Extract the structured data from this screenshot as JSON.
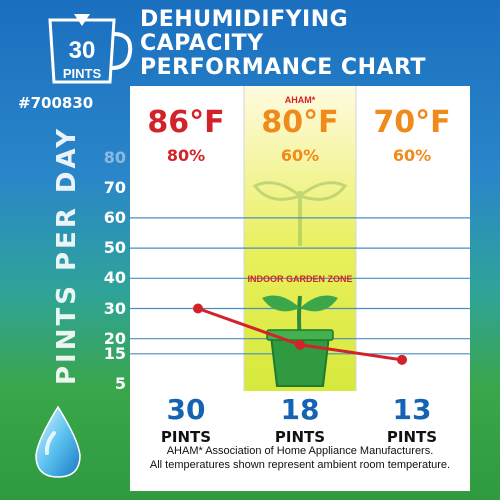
{
  "title_lines": [
    "DEHUMIDIFYING",
    "CAPACITY",
    "PERFORMANCE CHART"
  ],
  "badge": {
    "number": "30",
    "unit": "PINTS"
  },
  "model": "#700830",
  "colors": {
    "red": "#d2232a",
    "orange": "#ef8a1b",
    "blue": "#1563b3",
    "green": "#2f9a3f"
  },
  "columns": [
    {
      "temp": "86°F",
      "humidity": "80%",
      "pints": "30",
      "unit": "PINTS",
      "tag": ""
    },
    {
      "temp": "80°F",
      "humidity": "60%",
      "pints": "18",
      "unit": "PINTS",
      "tag": "AHAM*"
    },
    {
      "temp": "70°F",
      "humidity": "60%",
      "pints": "13",
      "unit": "PINTS",
      "tag": ""
    }
  ],
  "zone_label": "INDOOR GARDEN ZONE",
  "note_lines": [
    "AHAM* Association of Home Appliance Manufacturers.",
    "All temperatures shown represent ambient room temperature."
  ],
  "chart_data": {
    "type": "line",
    "title": "DEHUMIDIFYING CAPACITY PERFORMANCE CHART",
    "ylabel": "PINTS PER DAY",
    "yticks": [
      5,
      15,
      20,
      30,
      40,
      50,
      60,
      70,
      80
    ],
    "ylim": [
      5,
      80
    ],
    "categories": [
      "86°F 80%",
      "80°F 60%",
      "70°F 60%"
    ],
    "series": [
      {
        "values": [
          30,
          18,
          13
        ]
      }
    ],
    "grid": true
  }
}
